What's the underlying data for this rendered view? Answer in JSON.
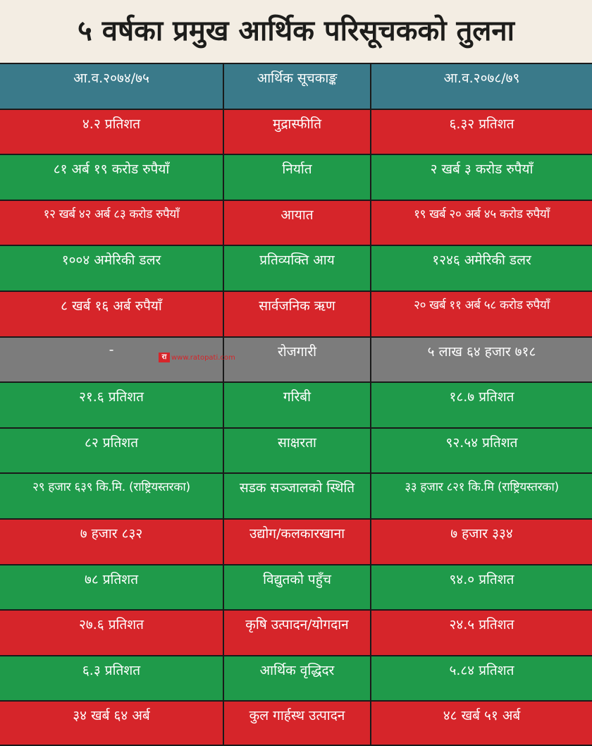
{
  "title": "५ वर्षका प्रमुख आर्थिक परिसूचकको तुलना",
  "colors": {
    "header": "#3a7a8a",
    "red": "#d6252a",
    "green": "#1f9a4a",
    "gray": "#7c7c7c"
  },
  "header": {
    "col1": "आ.व.२०७४/७५",
    "col2": "आर्थिक सूचकाङ्क",
    "col3": "आ.व.२०७८/७९"
  },
  "rows": [
    {
      "col1": "४.२ प्रतिशत",
      "col2": "मुद्रास्फीति",
      "col3": "६.३२ प्रतिशत",
      "color": "red"
    },
    {
      "col1": "८१ अर्ब १९ करोड रुपैयाँ",
      "col2": "निर्यात",
      "col3": "२ खर्ब ३ करोड रुपैयाँ",
      "color": "green"
    },
    {
      "col1": "१२ खर्ब ४२ अर्ब ८३ करोड रुपैयाँ",
      "col2": "आयात",
      "col3": "१९ खर्ब २० अर्ब ४५ करोड रुपैयाँ",
      "color": "red"
    },
    {
      "col1": "१००४ अमेरिकी डलर",
      "col2": "प्रतिव्यक्ति आय",
      "col3": "१२४६ अमेरिकी डलर",
      "color": "green"
    },
    {
      "col1": "८ खर्ब १६ अर्ब रुपैयाँ",
      "col2": "सार्वजनिक ऋण",
      "col3": "२० खर्ब ११ अर्ब ५८ करोड रुपैयाँ",
      "color": "red"
    },
    {
      "col1": "-",
      "col2": "रोजगारी",
      "col3": "५ लाख ६४ हजार ७१८",
      "color": "gray"
    },
    {
      "col1": "२१.६ प्रतिशत",
      "col2": "गरिबी",
      "col3": "१८.७ प्रतिशत",
      "color": "green"
    },
    {
      "col1": "८२ प्रतिशत",
      "col2": "साक्षरता",
      "col3": "९२.५४ प्रतिशत",
      "color": "green"
    },
    {
      "col1": "२९ हजार ६३९ कि.मि. (राष्ट्रियस्तरका)",
      "col2": "सडक सञ्जालको स्थिति",
      "col3": "३३ हजार ८२१ कि.मि (राष्ट्रियस्तरका)",
      "color": "green"
    },
    {
      "col1": "७ हजार ८३२",
      "col2": "उद्योग/कलकारखाना",
      "col3": "७ हजार ३३४",
      "color": "red"
    },
    {
      "col1": "७८ प्रतिशत",
      "col2": "विद्युतको पहुँच",
      "col3": "९४.० प्रतिशत",
      "color": "green"
    },
    {
      "col1": "२७.६ प्रतिशत",
      "col2": "कृषि उत्पादन/योगदान",
      "col3": "२४.५ प्रतिशत",
      "color": "red"
    },
    {
      "col1": "६.३ प्रतिशत",
      "col2": "आर्थिक वृद्धिदर",
      "col3": "५.८४ प्रतिशत",
      "color": "green"
    },
    {
      "col1": "३४ खर्ब ६४ अर्ब",
      "col2": "कुल गार्हस्थ उत्पादन",
      "col3": "४८ खर्ब ५१ अर्ब",
      "color": "red"
    }
  ],
  "watermark": {
    "logo": "रा",
    "text": "www.ratopati.com"
  }
}
